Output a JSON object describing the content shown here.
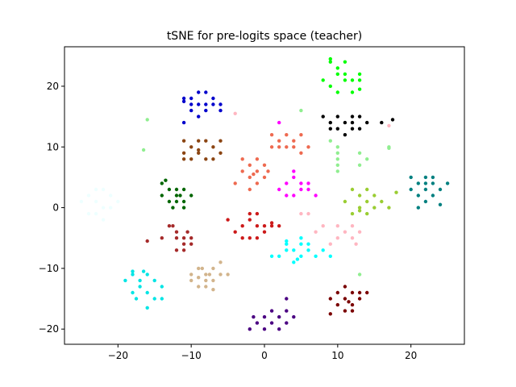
{
  "chart_data": {
    "type": "scatter",
    "title": "tSNE for pre-logits space (teacher)",
    "xlabel": "",
    "ylabel": "",
    "xlim": [
      -27.3,
      27.3
    ],
    "ylim": [
      -22.5,
      26.5
    ],
    "xticks": [
      -20,
      -10,
      0,
      10,
      20
    ],
    "yticks": [
      -20,
      -10,
      0,
      10,
      20
    ],
    "xtick_labels": [
      "−20",
      "−10",
      "0",
      "10",
      "20"
    ],
    "ytick_labels": [
      "−20",
      "−10",
      "0",
      "10",
      "20"
    ],
    "grid": false,
    "series": [
      {
        "color": "#0000cc",
        "points": [
          [
            -11,
            17.5
          ],
          [
            -10,
            18
          ],
          [
            -9,
            17
          ],
          [
            -8,
            19
          ],
          [
            -7,
            18
          ],
          [
            -6,
            16
          ],
          [
            -10,
            16
          ],
          [
            -9,
            15
          ],
          [
            -11,
            14
          ],
          [
            -8,
            16
          ],
          [
            -7,
            17
          ],
          [
            -10,
            17
          ],
          [
            -9,
            19
          ],
          [
            -6,
            17
          ],
          [
            -8,
            17
          ],
          [
            -11,
            18
          ]
        ]
      },
      {
        "color": "#00ff00",
        "points": [
          [
            9,
            24.5
          ],
          [
            10,
            23
          ],
          [
            11,
            22
          ],
          [
            12,
            21
          ],
          [
            13,
            22
          ],
          [
            13,
            21
          ],
          [
            8,
            21
          ],
          [
            9,
            20
          ],
          [
            10,
            22
          ],
          [
            11,
            21
          ],
          [
            12,
            19
          ],
          [
            10,
            19
          ],
          [
            9,
            24
          ],
          [
            13,
            19.5
          ],
          [
            11,
            24
          ]
        ]
      },
      {
        "color": "#000000",
        "points": [
          [
            8,
            15
          ],
          [
            9,
            14
          ],
          [
            10,
            13
          ],
          [
            11,
            14
          ],
          [
            12,
            13
          ],
          [
            13,
            15
          ],
          [
            14,
            14
          ],
          [
            10,
            15
          ],
          [
            11,
            12
          ],
          [
            12,
            14
          ],
          [
            13,
            13
          ],
          [
            16,
            14
          ],
          [
            17.5,
            14.5
          ],
          [
            9,
            13
          ],
          [
            12,
            15
          ]
        ]
      },
      {
        "color": "#8b4513",
        "points": [
          [
            -11,
            11
          ],
          [
            -10,
            10
          ],
          [
            -9,
            9
          ],
          [
            -8,
            11
          ],
          [
            -7,
            10
          ],
          [
            -6,
            11
          ],
          [
            -11,
            9
          ],
          [
            -8,
            8
          ],
          [
            -7,
            8
          ],
          [
            -9,
            11
          ],
          [
            -10,
            8
          ],
          [
            -6,
            9
          ],
          [
            -9,
            9.5
          ],
          [
            -11,
            8
          ]
        ]
      },
      {
        "color": "#ee6a50",
        "points": [
          [
            1,
            12
          ],
          [
            2,
            11
          ],
          [
            3,
            10
          ],
          [
            4,
            11
          ],
          [
            5,
            12
          ],
          [
            2,
            10
          ],
          [
            3,
            12
          ],
          [
            -1,
            8
          ],
          [
            -2,
            7
          ],
          [
            -1,
            6
          ],
          [
            0,
            7
          ],
          [
            -2,
            5
          ],
          [
            -1,
            4
          ],
          [
            0,
            5
          ],
          [
            -3,
            6
          ],
          [
            1,
            10
          ],
          [
            5,
            9
          ],
          [
            4,
            10
          ],
          [
            -2,
            3
          ],
          [
            -4,
            4
          ],
          [
            -3,
            8
          ],
          [
            6,
            10
          ],
          [
            -1.5,
            5.5
          ],
          [
            0.5,
            6
          ]
        ]
      },
      {
        "color": "#ff00ff",
        "points": [
          [
            2,
            3
          ],
          [
            3,
            4
          ],
          [
            4,
            5
          ],
          [
            5,
            4
          ],
          [
            6,
            3
          ],
          [
            7,
            2
          ],
          [
            3,
            2
          ],
          [
            4,
            2
          ],
          [
            5,
            3
          ],
          [
            4,
            6
          ],
          [
            2,
            14
          ],
          [
            6,
            4
          ]
        ]
      },
      {
        "color": "#006600",
        "points": [
          [
            -14,
            4
          ],
          [
            -13,
            3
          ],
          [
            -12,
            2
          ],
          [
            -11,
            3
          ],
          [
            -11,
            1
          ],
          [
            -12,
            1
          ],
          [
            -14,
            2
          ],
          [
            -13,
            1
          ],
          [
            -12,
            3
          ],
          [
            -10,
            2
          ],
          [
            -11,
            0
          ],
          [
            -12.5,
            0
          ],
          [
            -13.5,
            4.5
          ],
          [
            -11.5,
            2
          ]
        ]
      },
      {
        "color": "#9acd32",
        "points": [
          [
            12,
            3
          ],
          [
            13,
            2
          ],
          [
            14,
            1
          ],
          [
            15,
            0
          ],
          [
            16,
            1
          ],
          [
            13,
            0
          ],
          [
            14,
            -1
          ],
          [
            12,
            -1
          ],
          [
            11,
            1
          ],
          [
            14,
            3
          ],
          [
            15,
            2
          ],
          [
            17,
            0
          ],
          [
            18,
            2.5
          ],
          [
            13,
            -0.5
          ]
        ]
      },
      {
        "color": "#90ee90",
        "points": [
          [
            -16,
            14.5
          ],
          [
            -16.5,
            9.5
          ],
          [
            5,
            16
          ],
          [
            10,
            8
          ],
          [
            10,
            7
          ],
          [
            10,
            6
          ],
          [
            10,
            9
          ],
          [
            10,
            10
          ],
          [
            13,
            7
          ],
          [
            13,
            9
          ],
          [
            14,
            8
          ],
          [
            17,
            10
          ],
          [
            17,
            9.8
          ],
          [
            9,
            11
          ],
          [
            13,
            -11
          ]
        ]
      },
      {
        "color": "#008080",
        "points": [
          [
            20,
            5
          ],
          [
            21,
            4
          ],
          [
            22,
            3
          ],
          [
            23,
            4
          ],
          [
            24,
            3
          ],
          [
            22,
            5
          ],
          [
            21,
            2
          ],
          [
            22,
            1
          ],
          [
            23,
            2
          ],
          [
            20,
            3
          ],
          [
            21,
            0
          ],
          [
            22,
            4
          ],
          [
            25,
            4
          ],
          [
            24,
            0.5
          ],
          [
            23,
            5
          ]
        ]
      },
      {
        "color": "#cc1a1a",
        "points": [
          [
            -5,
            -2
          ],
          [
            -3,
            -3
          ],
          [
            -2,
            -2
          ],
          [
            -1,
            -3
          ],
          [
            0,
            -4
          ],
          [
            1,
            -3
          ],
          [
            2,
            -3
          ],
          [
            -3,
            -5
          ],
          [
            -2,
            -5
          ],
          [
            -1,
            -5
          ],
          [
            0,
            -3
          ],
          [
            -4,
            -4
          ],
          [
            -1,
            -1
          ],
          [
            -2,
            -1
          ],
          [
            1,
            -2.5
          ]
        ]
      },
      {
        "color": "#a52a2a",
        "points": [
          [
            -13,
            -3
          ],
          [
            -12,
            -4
          ],
          [
            -11,
            -5
          ],
          [
            -10,
            -6
          ],
          [
            -11,
            -7
          ],
          [
            -12,
            -7
          ],
          [
            -14,
            -5
          ],
          [
            -11,
            -6
          ],
          [
            -10,
            -5
          ],
          [
            -12,
            -5
          ],
          [
            -16,
            -5.5
          ],
          [
            -10.5,
            -4
          ],
          [
            -12.5,
            -3
          ]
        ]
      },
      {
        "color": "#00ffff",
        "points": [
          [
            3,
            -6
          ],
          [
            4,
            -7
          ],
          [
            5,
            -6
          ],
          [
            6,
            -7
          ],
          [
            5,
            -8
          ],
          [
            4,
            -9
          ],
          [
            6,
            -6
          ],
          [
            2,
            -8
          ],
          [
            1,
            -8
          ],
          [
            3,
            -7
          ],
          [
            7,
            -8
          ],
          [
            8,
            -7
          ],
          [
            9,
            -8
          ],
          [
            5,
            -5
          ],
          [
            3,
            -5.5
          ],
          [
            4.5,
            -8.5
          ]
        ]
      },
      {
        "color": "#ffb6c1",
        "points": [
          [
            10,
            -3
          ],
          [
            11,
            -4
          ],
          [
            12,
            -3
          ],
          [
            13,
            -4
          ],
          [
            12,
            -5
          ],
          [
            10,
            -5
          ],
          [
            9,
            -6
          ],
          [
            8,
            -3
          ],
          [
            7,
            -4
          ],
          [
            6,
            -1
          ],
          [
            5,
            -1
          ],
          [
            -4,
            15.5
          ],
          [
            17,
            13.5
          ],
          [
            12.5,
            -6
          ]
        ]
      },
      {
        "color": "#00e5e5",
        "points": [
          [
            -18,
            -11
          ],
          [
            -17,
            -12
          ],
          [
            -16,
            -11
          ],
          [
            -15,
            -12
          ],
          [
            -14,
            -13
          ],
          [
            -17,
            -13
          ],
          [
            -16,
            -14
          ],
          [
            -15,
            -15
          ],
          [
            -14,
            -15
          ],
          [
            -18,
            -14
          ],
          [
            -19,
            -12
          ],
          [
            -18,
            -10.5
          ],
          [
            -16.5,
            -10.5
          ],
          [
            -16,
            -16.5
          ],
          [
            -17.5,
            -15
          ]
        ]
      },
      {
        "color": "#d2b48c",
        "points": [
          [
            -10,
            -11
          ],
          [
            -9,
            -10
          ],
          [
            -8,
            -11
          ],
          [
            -7,
            -10
          ],
          [
            -6,
            -11
          ],
          [
            -8,
            -12
          ],
          [
            -7,
            -12
          ],
          [
            -9,
            -13
          ],
          [
            -8,
            -13
          ],
          [
            -10,
            -12
          ],
          [
            -5,
            -11
          ],
          [
            -6,
            -9
          ],
          [
            -9,
            -11.5
          ],
          [
            -7,
            -13.5
          ],
          [
            -8.5,
            -10
          ],
          [
            -7.5,
            -11
          ]
        ]
      },
      {
        "color": "#4b0082",
        "points": [
          [
            1,
            -17
          ],
          [
            2,
            -18
          ],
          [
            3,
            -17
          ],
          [
            1,
            -19
          ],
          [
            2,
            -20
          ],
          [
            3,
            -19
          ],
          [
            -1,
            -19
          ],
          [
            -2,
            -20
          ],
          [
            0,
            -18
          ],
          [
            4,
            -18
          ],
          [
            3,
            -15
          ],
          [
            0,
            -20
          ],
          [
            -1.5,
            -18
          ]
        ]
      },
      {
        "color": "#7a0000",
        "points": [
          [
            11,
            -13
          ],
          [
            12,
            -14
          ],
          [
            13,
            -15
          ],
          [
            12,
            -16
          ],
          [
            11,
            -17
          ],
          [
            10,
            -16
          ],
          [
            9,
            -15
          ],
          [
            10,
            -14
          ],
          [
            11,
            -15
          ],
          [
            12,
            -17
          ],
          [
            13,
            -14
          ],
          [
            14,
            -14
          ],
          [
            9,
            -17.5
          ],
          [
            11.5,
            -15.5
          ]
        ]
      },
      {
        "color": "#eeffff",
        "points": [
          [
            -25,
            1
          ],
          [
            -24,
            2
          ],
          [
            -23,
            1
          ],
          [
            -22,
            0
          ],
          [
            -21,
            2
          ],
          [
            -23,
            -1
          ],
          [
            -22,
            -2
          ],
          [
            -24,
            -1
          ],
          [
            -22,
            3
          ],
          [
            -21,
            0
          ],
          [
            -20,
            1
          ],
          [
            -23,
            3
          ]
        ]
      }
    ]
  }
}
